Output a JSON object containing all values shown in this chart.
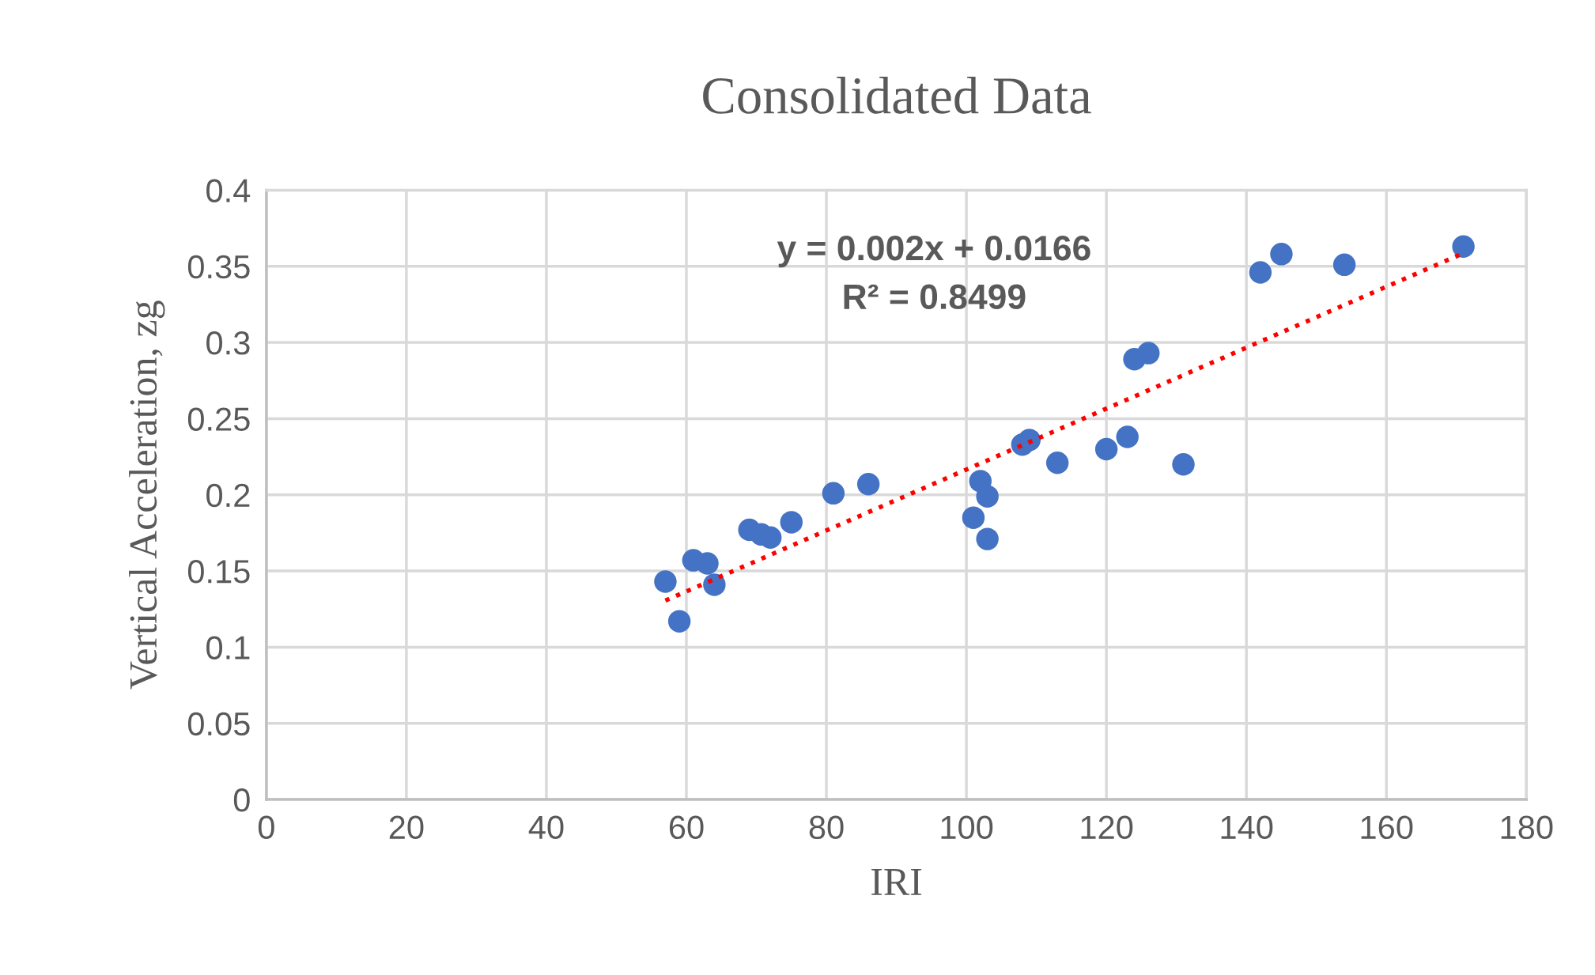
{
  "chart_data": {
    "type": "scatter",
    "title": "Consolidated Data",
    "xlabel": "IRI",
    "ylabel": "Vertical Acceleration, zg",
    "series": [
      {
        "color": "#4472c4",
        "marker": "circle",
        "x": [
          57,
          59,
          61,
          63,
          64,
          69,
          70.7,
          72,
          75,
          81,
          86,
          101,
          102,
          103,
          103,
          108,
          109,
          113,
          120,
          123,
          124,
          126,
          131,
          142,
          145,
          154,
          171
        ],
        "values": [
          0.143,
          0.117,
          0.157,
          0.155,
          0.141,
          0.177,
          0.174,
          0.172,
          0.182,
          0.201,
          0.207,
          0.185,
          0.209,
          0.199,
          0.171,
          0.233,
          0.236,
          0.221,
          0.23,
          0.238,
          0.289,
          0.293,
          0.22,
          0.346,
          0.358,
          0.351,
          0.363
        ]
      },
      {
        "type": "line",
        "color": "#ff0000",
        "line_style": "dotted",
        "marker": "none",
        "x": [
          57,
          171
        ],
        "values": [
          0.1306,
          0.3586
        ]
      }
    ],
    "annotations": [
      "y = 0.002x + 0.0166",
      "R² = 0.8499"
    ],
    "xlim": [
      0,
      180
    ],
    "xticks": [
      0,
      20,
      40,
      60,
      80,
      100,
      120,
      140,
      160,
      180
    ],
    "ylim": [
      0,
      0.4
    ],
    "yticks": [
      0,
      0.05,
      0.1,
      0.15,
      0.2,
      0.25,
      0.3,
      0.35,
      0.4
    ],
    "grid": true,
    "legend": false
  }
}
